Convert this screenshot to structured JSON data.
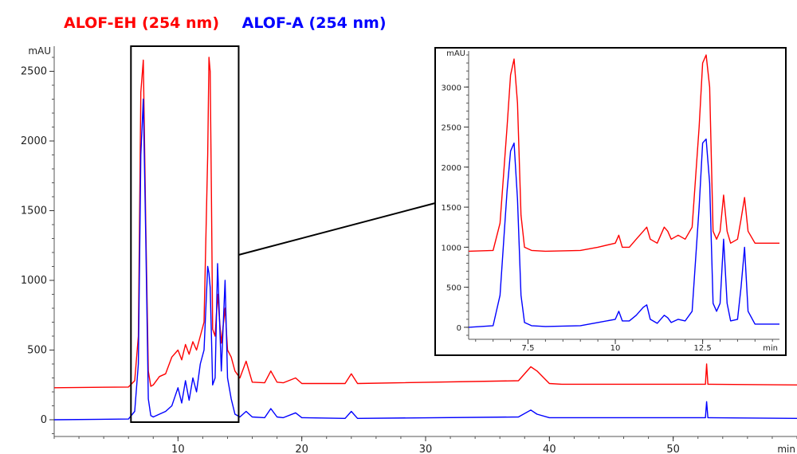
{
  "legend": [
    {
      "label": "ALOF-EH (254 nm)",
      "color": "#ff0000"
    },
    {
      "label": "ALOF-A (254 nm)",
      "color": "#0000ff"
    }
  ],
  "chart_data": [
    {
      "type": "line",
      "xlabel": "min",
      "ylabel": "mAU",
      "xlim": [
        0,
        60
      ],
      "ylim": [
        -120,
        2680
      ],
      "xticks": [
        10,
        20,
        30,
        40,
        50
      ],
      "yticks": [
        0,
        500,
        1000,
        1500,
        2000,
        2500
      ],
      "grid": false,
      "series": [
        {
          "name": "ALOF-EH (254 nm)",
          "color": "#ff0000",
          "x": [
            0,
            6.0,
            6.5,
            6.8,
            7.0,
            7.2,
            7.4,
            7.6,
            7.8,
            8.0,
            8.5,
            9.0,
            9.5,
            10.0,
            10.3,
            10.6,
            10.9,
            11.2,
            11.5,
            11.8,
            12.1,
            12.4,
            12.5,
            12.6,
            12.7,
            12.8,
            13.0,
            13.2,
            13.5,
            13.8,
            14.0,
            14.3,
            14.6,
            15.0,
            15.5,
            16.0,
            17.0,
            17.5,
            18.0,
            18.5,
            19.5,
            20.0,
            23.5,
            24.0,
            24.5,
            37.5,
            38.5,
            39.0,
            40.0,
            41.0,
            52.6,
            52.7,
            52.8,
            60
          ],
          "values": [
            230,
            235,
            280,
            600,
            2350,
            2580,
            1400,
            350,
            240,
            250,
            310,
            330,
            450,
            500,
            430,
            540,
            470,
            560,
            500,
            600,
            700,
            1900,
            2600,
            2500,
            1600,
            650,
            600,
            900,
            550,
            800,
            500,
            450,
            350,
            300,
            420,
            270,
            265,
            350,
            270,
            265,
            300,
            260,
            260,
            330,
            260,
            280,
            380,
            350,
            260,
            255,
            255,
            400,
            255,
            250
          ]
        },
        {
          "name": "ALOF-A (254 nm)",
          "color": "#0000ff",
          "x": [
            0,
            6.0,
            6.5,
            6.8,
            7.0,
            7.2,
            7.4,
            7.6,
            7.8,
            8.0,
            8.5,
            9.0,
            9.5,
            10.0,
            10.3,
            10.6,
            10.9,
            11.2,
            11.5,
            11.8,
            12.1,
            12.4,
            12.5,
            12.6,
            12.7,
            12.8,
            13.0,
            13.2,
            13.5,
            13.8,
            14.0,
            14.3,
            14.6,
            15.0,
            15.5,
            16.0,
            17.0,
            17.5,
            18.0,
            18.5,
            19.5,
            20.0,
            23.5,
            24.0,
            24.5,
            37.5,
            38.5,
            39.0,
            40.0,
            41.0,
            52.6,
            52.7,
            52.8,
            60
          ],
          "values": [
            0,
            5,
            60,
            400,
            1900,
            2300,
            1300,
            150,
            30,
            20,
            40,
            60,
            100,
            230,
            120,
            280,
            140,
            300,
            200,
            400,
            500,
            1100,
            1050,
            950,
            600,
            250,
            300,
            1120,
            350,
            1000,
            300,
            150,
            40,
            20,
            60,
            20,
            15,
            80,
            20,
            15,
            50,
            15,
            10,
            60,
            10,
            20,
            70,
            40,
            15,
            15,
            15,
            130,
            15,
            10
          ]
        }
      ]
    },
    {
      "type": "line",
      "xlabel": "min",
      "ylabel": "mAU",
      "xlim": [
        5.8,
        14.7
      ],
      "ylim": [
        -150,
        3450
      ],
      "xticks": [
        7.5,
        10,
        12.5
      ],
      "xtick_labels": [
        "7.5",
        "10",
        "12.5"
      ],
      "yticks": [
        0,
        500,
        1000,
        1500,
        2000,
        2500,
        3000
      ],
      "grid": false,
      "series": [
        {
          "name": "ALOF-EH (254 nm)",
          "color": "#ff0000",
          "x": [
            5.8,
            6.5,
            6.7,
            6.9,
            7.0,
            7.1,
            7.2,
            7.3,
            7.4,
            7.6,
            8.0,
            9.0,
            9.5,
            10.0,
            10.1,
            10.2,
            10.4,
            10.6,
            10.8,
            10.9,
            11.0,
            11.2,
            11.4,
            11.5,
            11.6,
            11.8,
            12.0,
            12.2,
            12.4,
            12.5,
            12.6,
            12.7,
            12.8,
            12.9,
            13.0,
            13.1,
            13.2,
            13.3,
            13.5,
            13.6,
            13.7,
            13.8,
            14.0,
            14.7
          ],
          "values": [
            950,
            960,
            1300,
            2500,
            3150,
            3350,
            2800,
            1400,
            1000,
            960,
            950,
            960,
            1000,
            1050,
            1150,
            1000,
            1000,
            1100,
            1200,
            1250,
            1100,
            1050,
            1250,
            1200,
            1100,
            1150,
            1100,
            1250,
            2500,
            3300,
            3400,
            3000,
            1200,
            1100,
            1200,
            1650,
            1200,
            1050,
            1100,
            1350,
            1620,
            1200,
            1050,
            1050
          ]
        },
        {
          "name": "ALOF-A (254 nm)",
          "color": "#0000ff",
          "x": [
            5.8,
            6.5,
            6.7,
            6.9,
            7.0,
            7.1,
            7.2,
            7.3,
            7.4,
            7.6,
            8.0,
            9.0,
            9.5,
            10.0,
            10.1,
            10.2,
            10.4,
            10.6,
            10.8,
            10.9,
            11.0,
            11.2,
            11.4,
            11.5,
            11.6,
            11.8,
            12.0,
            12.2,
            12.4,
            12.5,
            12.6,
            12.7,
            12.8,
            12.9,
            13.0,
            13.1,
            13.2,
            13.3,
            13.5,
            13.6,
            13.7,
            13.8,
            14.0,
            14.7
          ],
          "values": [
            0,
            20,
            400,
            1700,
            2200,
            2300,
            1600,
            400,
            60,
            20,
            10,
            20,
            60,
            100,
            200,
            80,
            80,
            150,
            250,
            280,
            100,
            50,
            150,
            120,
            60,
            100,
            80,
            200,
            1500,
            2300,
            2350,
            1800,
            300,
            200,
            300,
            1100,
            300,
            80,
            100,
            500,
            1000,
            200,
            40,
            40
          ]
        }
      ]
    }
  ]
}
